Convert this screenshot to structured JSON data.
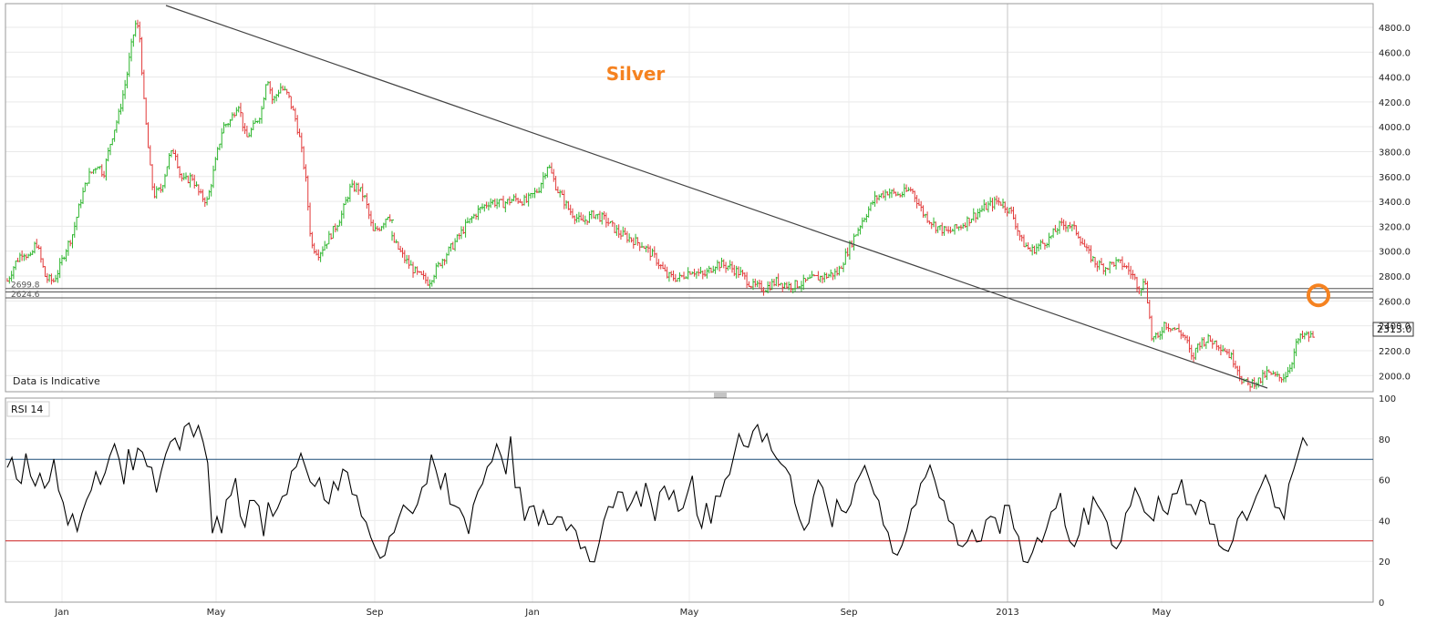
{
  "chart_data": [
    {
      "type": "candlestick",
      "title": "Silver",
      "note": "Data is Indicative",
      "y_ticks": [
        2000,
        2200,
        2400,
        2600,
        2800,
        3000,
        3200,
        3400,
        3600,
        3800,
        4000,
        4200,
        4400,
        4600,
        4800
      ],
      "ylim": [
        1870,
        4990
      ],
      "x_ticks": [
        "Jan",
        "May",
        "Sep",
        "Jan",
        "May",
        "Sep",
        "2013",
        "May"
      ],
      "last_price": "2313.0",
      "level_labels": [
        "2699.8",
        "2624.6"
      ],
      "horizontal_levels": [
        2699.8,
        2672.0,
        2624.6
      ],
      "trendline_start": [
        0.0,
        5000
      ],
      "trendline_end": [
        1.0,
        1800
      ],
      "marker": {
        "shape": "circle",
        "color": "#f58220",
        "at_price": 2630
      },
      "series": [
        {
          "up_color": "#2db52d",
          "down_color": "#e23a3a",
          "path": [
            [
              0.0,
              2760
            ],
            [
              0.02,
              2900
            ],
            [
              0.04,
              3000
            ],
            [
              0.06,
              2940
            ],
            [
              0.075,
              3080
            ],
            [
              0.09,
              2900
            ],
            [
              0.1,
              2780
            ],
            [
              0.12,
              2760
            ],
            [
              0.135,
              2860
            ],
            [
              0.15,
              3000
            ],
            [
              0.17,
              3140
            ],
            [
              0.19,
              3400
            ],
            [
              0.21,
              3600
            ],
            [
              0.235,
              3700
            ],
            [
              0.25,
              3620
            ],
            [
              0.27,
              3900
            ],
            [
              0.29,
              4100
            ],
            [
              0.31,
              4400
            ],
            [
              0.325,
              4700
            ],
            [
              0.335,
              4850
            ],
            [
              0.345,
              4700
            ],
            [
              0.355,
              4200
            ],
            [
              0.37,
              3700
            ],
            [
              0.38,
              3450
            ],
            [
              0.4,
              3500
            ],
            [
              0.42,
              3750
            ],
            [
              0.435,
              3820
            ],
            [
              0.45,
              3600
            ],
            [
              0.46,
              3560
            ],
            [
              0.48,
              3600
            ],
            [
              0.5,
              3450
            ],
            [
              0.52,
              3400
            ],
            [
              0.54,
              3700
            ],
            [
              0.56,
              4000
            ],
            [
              0.58,
              4050
            ],
            [
              0.6,
              4200
            ],
            [
              0.62,
              3900
            ],
            [
              0.64,
              4000
            ],
            [
              0.66,
              4120
            ],
            [
              0.675,
              4420
            ],
            [
              0.69,
              4200
            ],
            [
              0.71,
              4320
            ],
            [
              0.73,
              4250
            ],
            [
              0.75,
              4050
            ],
            [
              0.76,
              3900
            ],
            [
              0.775,
              3600
            ],
            [
              0.79,
              3050
            ],
            [
              0.81,
              2980
            ],
            [
              0.83,
              3080
            ],
            [
              0.85,
              3180
            ],
            [
              0.87,
              3300
            ],
            [
              0.89,
              3500
            ],
            [
              0.91,
              3520
            ],
            [
              0.93,
              3420
            ],
            [
              0.95,
              3150
            ],
            [
              0.97,
              3200
            ],
            [
              0.99,
              3300
            ],
            [
              1.0,
              3250
            ]
          ]
        },
        {
          "up_color": "#2db52d",
          "down_color": "#e23a3a",
          "path": [
            [
              0.0,
              3100
            ],
            [
              0.02,
              2940
            ],
            [
              0.04,
              2820
            ],
            [
              0.06,
              2750
            ],
            [
              0.08,
              2920
            ],
            [
              0.1,
              3050
            ],
            [
              0.12,
              3200
            ],
            [
              0.14,
              3320
            ],
            [
              0.16,
              3400
            ],
            [
              0.18,
              3380
            ],
            [
              0.2,
              3420
            ],
            [
              0.22,
              3400
            ],
            [
              0.24,
              3500
            ],
            [
              0.255,
              3700
            ],
            [
              0.27,
              3500
            ],
            [
              0.29,
              3330
            ],
            [
              0.31,
              3230
            ],
            [
              0.33,
              3300
            ],
            [
              0.35,
              3250
            ],
            [
              0.37,
              3150
            ],
            [
              0.39,
              3100
            ],
            [
              0.41,
              3050
            ],
            [
              0.43,
              2950
            ],
            [
              0.45,
              2800
            ],
            [
              0.47,
              2780
            ],
            [
              0.49,
              2850
            ],
            [
              0.51,
              2800
            ],
            [
              0.53,
              2900
            ],
            [
              0.55,
              2880
            ],
            [
              0.57,
              2820
            ],
            [
              0.59,
              2720
            ],
            [
              0.61,
              2700
            ],
            [
              0.63,
              2760
            ],
            [
              0.65,
              2720
            ],
            [
              0.67,
              2740
            ],
            [
              0.69,
              2780
            ],
            [
              0.71,
              2800
            ],
            [
              0.73,
              2830
            ],
            [
              0.75,
              3050
            ],
            [
              0.77,
              3250
            ],
            [
              0.79,
              3420
            ],
            [
              0.81,
              3480
            ],
            [
              0.83,
              3450
            ],
            [
              0.85,
              3500
            ],
            [
              0.87,
              3300
            ],
            [
              0.89,
              3200
            ],
            [
              0.91,
              3150
            ],
            [
              0.93,
              3200
            ],
            [
              0.95,
              3280
            ],
            [
              0.97,
              3350
            ],
            [
              0.99,
              3400
            ],
            [
              1.0,
              3380
            ]
          ]
        },
        {
          "up_color": "#2db52d",
          "down_color": "#e23a3a",
          "path": [
            [
              0.0,
              3380
            ],
            [
              0.03,
              3300
            ],
            [
              0.06,
              3080
            ],
            [
              0.09,
              3000
            ],
            [
              0.12,
              3050
            ],
            [
              0.15,
              3100
            ],
            [
              0.18,
              3200
            ],
            [
              0.21,
              3220
            ],
            [
              0.24,
              3150
            ],
            [
              0.27,
              3000
            ],
            [
              0.3,
              2900
            ],
            [
              0.33,
              2870
            ],
            [
              0.36,
              2910
            ],
            [
              0.39,
              2890
            ],
            [
              0.42,
              2800
            ],
            [
              0.44,
              2700
            ],
            [
              0.46,
              2760
            ],
            [
              0.48,
              2300
            ],
            [
              0.5,
              2300
            ],
            [
              0.52,
              2420
            ],
            [
              0.55,
              2380
            ],
            [
              0.57,
              2350
            ],
            [
              0.59,
              2300
            ],
            [
              0.61,
              2120
            ],
            [
              0.63,
              2260
            ],
            [
              0.66,
              2290
            ],
            [
              0.69,
              2260
            ],
            [
              0.72,
              2200
            ],
            [
              0.75,
              2100
            ],
            [
              0.77,
              1970
            ],
            [
              0.79,
              1920
            ],
            [
              0.81,
              1950
            ],
            [
              0.83,
              1960
            ],
            [
              0.85,
              2020
            ],
            [
              0.87,
              2000
            ],
            [
              0.89,
              1980
            ],
            [
              0.91,
              2000
            ],
            [
              0.93,
              2100
            ],
            [
              0.95,
              2280
            ],
            [
              0.97,
              2320
            ],
            [
              1.0,
              2313
            ]
          ]
        }
      ]
    },
    {
      "type": "line",
      "title": "RSI 14",
      "ylim": [
        0,
        100
      ],
      "y_ticks": [
        0,
        20,
        40,
        60,
        80,
        100
      ],
      "reference_lines": [
        {
          "value": 70,
          "color": "#1f4e79"
        },
        {
          "value": 30,
          "color": "#cc1f1f"
        }
      ],
      "series": [
        {
          "color": "#000000",
          "points": [
            66,
            70,
            62,
            56,
            75,
            60,
            58,
            63,
            55,
            61,
            68,
            57,
            47,
            39,
            43,
            34,
            45,
            48,
            57,
            62,
            59,
            63,
            71,
            79,
            68,
            60,
            73,
            66,
            75,
            73,
            68,
            64,
            56,
            62,
            74,
            78,
            80,
            76,
            84,
            90,
            79,
            88,
            78,
            68,
            35,
            40,
            36,
            48,
            54,
            60,
            42,
            38,
            48,
            52,
            45,
            34,
            48,
            42,
            47,
            50,
            55,
            62,
            68,
            72,
            66,
            60,
            55,
            63,
            48,
            50,
            58,
            55,
            66,
            62,
            55,
            50,
            44,
            38,
            32,
            27,
            20,
            25,
            30,
            36,
            40,
            48,
            46,
            42,
            50,
            54,
            60,
            71,
            65,
            56,
            62,
            50,
            45,
            48,
            40,
            34,
            48,
            53,
            60,
            64,
            71,
            76,
            72,
            63,
            80,
            58,
            54,
            42,
            45,
            48,
            38,
            44,
            40,
            36,
            44,
            40,
            36,
            38,
            34,
            28,
            25,
            22,
            18,
            30,
            40,
            46,
            48,
            52,
            56,
            43,
            50,
            54,
            46,
            60,
            48,
            42,
            52,
            58,
            50,
            54,
            46,
            44,
            56,
            60,
            44,
            36,
            48,
            40,
            50,
            54,
            58,
            64,
            72,
            82,
            78,
            74,
            86,
            85,
            80,
            82,
            74,
            72,
            66,
            68,
            60,
            50,
            40,
            35,
            40,
            50,
            62,
            54,
            48,
            36,
            50,
            46,
            42,
            50,
            56,
            64,
            66,
            60,
            54,
            48,
            40,
            32,
            26,
            22,
            28,
            36,
            44,
            50,
            56,
            63,
            66,
            60,
            52,
            48,
            42,
            36,
            30,
            26,
            30,
            36,
            28,
            32,
            38,
            44,
            40,
            34,
            48,
            46,
            38,
            30,
            22,
            18,
            25,
            32,
            28,
            38,
            42,
            48,
            52,
            38,
            30,
            26,
            35,
            44,
            40,
            50,
            48,
            44,
            38,
            30,
            24,
            32,
            42,
            48,
            56,
            50,
            46,
            40,
            42,
            50,
            46,
            43,
            52,
            55,
            58,
            50,
            46,
            44,
            50,
            48,
            40,
            36,
            30,
            24,
            26,
            30,
            40,
            46,
            38,
            48,
            50,
            58,
            62,
            56,
            48,
            44,
            43,
            56,
            66,
            72,
            80,
            78
          ]
        }
      ]
    }
  ]
}
